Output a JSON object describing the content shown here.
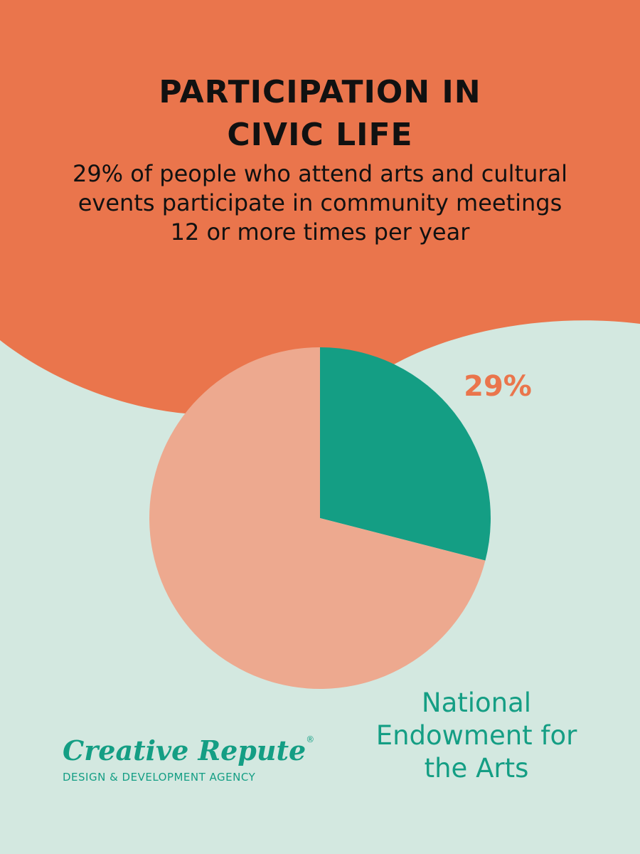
{
  "chart_data": {
    "type": "pie",
    "title": "PARTICIPATION IN CIVIC LIFE",
    "subtitle": "29% of people who attend arts and cultural events participate in community meetings 12 or more times per year",
    "values": [
      29,
      71
    ],
    "value_labels": [
      "29%",
      null
    ],
    "colors": [
      "#149e84",
      "#eda98f"
    ],
    "label_color": "#ea754c",
    "source": "National Endowment for the Arts"
  },
  "logo": {
    "name": "Creative Repute",
    "mark": "®",
    "tagline": "DESIGN & DEVELOPMENT AGENCY"
  }
}
